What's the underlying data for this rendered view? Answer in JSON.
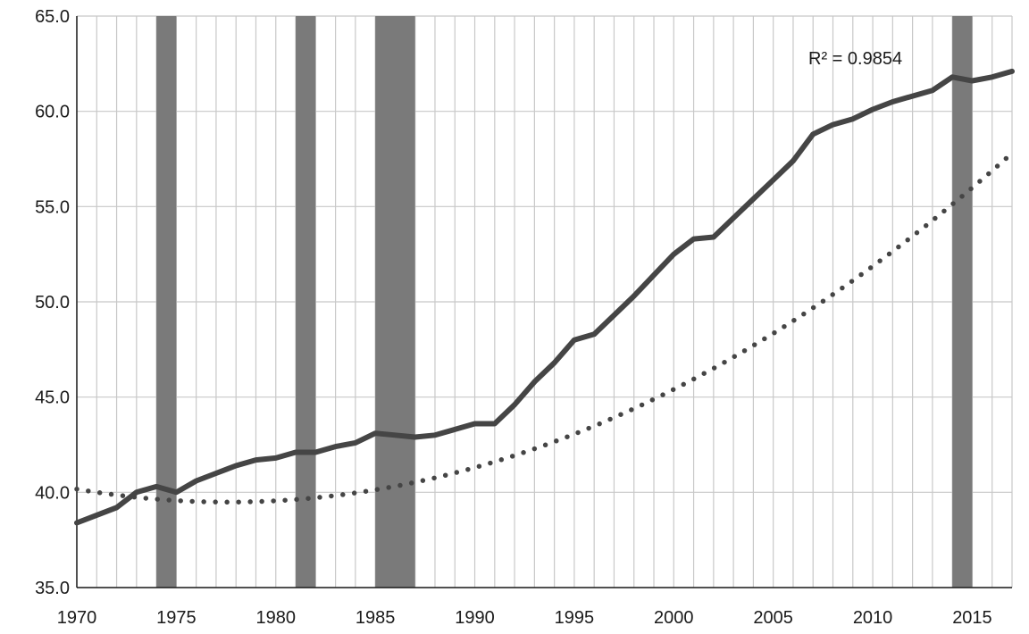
{
  "chart_data": {
    "type": "line",
    "xlim": [
      1970,
      2017
    ],
    "ylim": [
      35,
      65
    ],
    "y_ticks": [
      35,
      40,
      45,
      50,
      55,
      60,
      65
    ],
    "y_tick_labels": [
      "35.0",
      "40.0",
      "45.0",
      "50.0",
      "55.0",
      "60.0",
      "65.0"
    ],
    "x_ticks": [
      1970,
      1975,
      1980,
      1985,
      1990,
      1995,
      2000,
      2005,
      2010,
      2015
    ],
    "x_tick_labels": [
      "1970",
      "1975",
      "1980",
      "1985",
      "1990",
      "1995",
      "2000",
      "2005",
      "2010",
      "2015"
    ],
    "grid": true,
    "shaded_periods": [
      [
        1974,
        1975
      ],
      [
        1981,
        1982
      ],
      [
        1985,
        1987
      ],
      [
        2014,
        2015
      ]
    ],
    "series": [
      {
        "style": "solid",
        "x": [
          1970,
          1971,
          1972,
          1973,
          1974,
          1975,
          1976,
          1977,
          1978,
          1979,
          1980,
          1981,
          1982,
          1983,
          1984,
          1985,
          1986,
          1987,
          1988,
          1989,
          1990,
          1991,
          1992,
          1993,
          1994,
          1995,
          1996,
          1997,
          1998,
          1999,
          2000,
          2001,
          2002,
          2003,
          2004,
          2005,
          2006,
          2007,
          2008,
          2009,
          2010,
          2011,
          2012,
          2013,
          2014,
          2015,
          2016,
          2017
        ],
        "y": [
          38.4,
          38.8,
          39.2,
          40.0,
          40.3,
          40.0,
          40.6,
          41.0,
          41.4,
          41.7,
          41.8,
          42.1,
          42.1,
          42.4,
          42.6,
          43.1,
          43.0,
          42.9,
          43.0,
          43.3,
          43.6,
          43.6,
          44.6,
          45.8,
          46.8,
          48.0,
          48.3,
          49.3,
          50.3,
          51.4,
          52.5,
          53.3,
          53.4,
          54.4,
          55.4,
          56.4,
          57.4,
          58.8,
          59.3,
          59.6,
          60.1,
          60.5,
          60.8,
          61.1,
          61.8,
          61.6,
          61.8,
          62.1
        ]
      },
      {
        "style": "dotted",
        "label": "R² = 0.9854",
        "trend_poly": [
          40.17,
          -0.1795,
          0.0118
        ]
      }
    ],
    "annotation": "R² = 0.9854",
    "colors": {
      "line": "#454545",
      "trend": "#454545",
      "shade": "#7a7a7a",
      "grid": "#c8c8c8",
      "axis": "#1a1a1a"
    }
  }
}
